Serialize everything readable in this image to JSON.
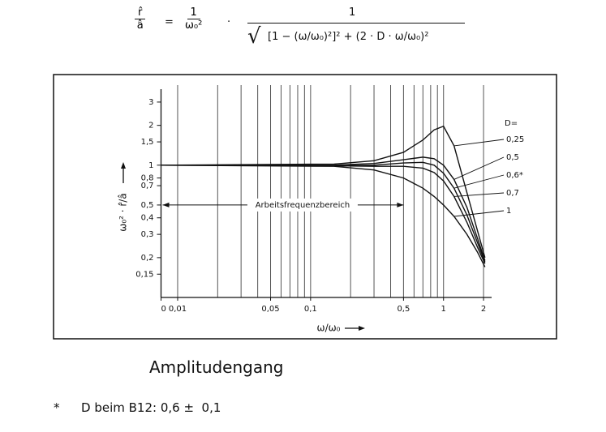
{
  "formula": {
    "lhs_num": "r̂",
    "lhs_den": "â",
    "eq": "=",
    "f1_num": "1",
    "f1_den": "ω₀²",
    "dot": "·",
    "f2_num": "1",
    "f2_den": "[1 − (ω/ω₀)²]²  +  (2 · D · ω/ω₀)²"
  },
  "chart_data": {
    "type": "line",
    "log_x": true,
    "log_y": true,
    "ylabel": "ω₀² · r̂/â",
    "xlabel": "ω/ω₀",
    "xlim": [
      0.0075,
      2.3
    ],
    "ylim": [
      0.1,
      3.5
    ],
    "xticks": [
      {
        "value": 0.0075,
        "label": "0"
      },
      {
        "value": 0.01,
        "label": "0,01"
      },
      {
        "value": 0.05,
        "label": "0,05"
      },
      {
        "value": 0.1,
        "label": "0,1"
      },
      {
        "value": 0.5,
        "label": "0,5"
      },
      1,
      2
    ],
    "yticks": [
      3,
      2,
      {
        "value": 1.5,
        "label": "1,5"
      },
      1,
      {
        "value": 0.8,
        "label": "0,8"
      },
      {
        "value": 0.7,
        "label": "0,7"
      },
      {
        "value": 0.5,
        "label": "0,5"
      },
      {
        "value": 0.4,
        "label": "0,4"
      },
      {
        "value": 0.3,
        "label": "0,3"
      },
      {
        "value": 0.2,
        "label": "0,2"
      },
      {
        "value": 0.15,
        "label": "0,15"
      }
    ],
    "xgrid": [
      0.01,
      0.02,
      0.03,
      0.04,
      0.05,
      0.06,
      0.07,
      0.08,
      0.09,
      0.1,
      0.2,
      0.3,
      0.4,
      0.5,
      0.6,
      0.7,
      0.8,
      0.9,
      1,
      2
    ],
    "grid": true,
    "legend_title": "D=",
    "x": [
      0.0075,
      0.15,
      0.3,
      0.5,
      0.7,
      0.85,
      1.0,
      1.2,
      1.5,
      1.8,
      2.05
    ],
    "series": [
      {
        "name": "0,25",
        "color": "#111111",
        "values": [
          1,
          1.02,
          1.08,
          1.25,
          1.55,
          1.85,
          1.97,
          1.4,
          0.62,
          0.32,
          0.2
        ]
      },
      {
        "name": "0,5",
        "color": "#111111",
        "values": [
          1,
          1.0,
          1.03,
          1.1,
          1.15,
          1.12,
          1.0,
          0.78,
          0.48,
          0.28,
          0.19
        ]
      },
      {
        "name": "0,6*",
        "color": "#111111",
        "values": [
          1,
          0.99,
          1.0,
          1.04,
          1.05,
          1.0,
          0.87,
          0.67,
          0.42,
          0.26,
          0.185
        ]
      },
      {
        "name": "0,7",
        "color": "#111111",
        "values": [
          1,
          0.99,
          0.98,
          0.98,
          0.95,
          0.88,
          0.76,
          0.58,
          0.37,
          0.24,
          0.18
        ]
      },
      {
        "name": "1",
        "color": "#111111",
        "values": [
          1,
          0.98,
          0.92,
          0.8,
          0.67,
          0.58,
          0.5,
          0.41,
          0.3,
          0.22,
          0.17
        ]
      }
    ],
    "annotation": {
      "text": "Arbeitsfrequenzbereich",
      "x": [
        0.0075,
        0.5
      ],
      "y": 0.5
    }
  },
  "caption": "Amplitudengang",
  "footnote": {
    "mark": "*",
    "text": "D beim B12: 0,6 ±  0,1"
  }
}
